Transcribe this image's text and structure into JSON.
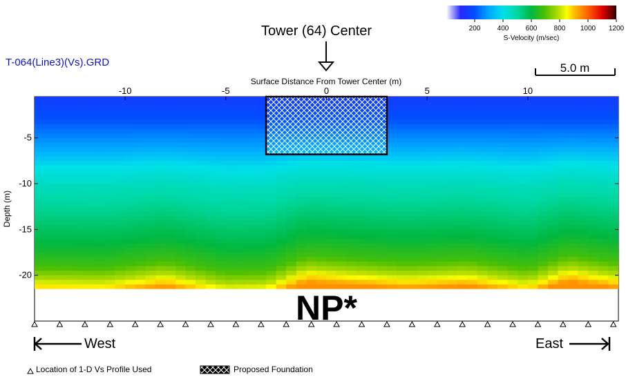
{
  "file_title": "T-064(Line3)(Vs).GRD",
  "tower_title": "Tower (64) Center",
  "np_label": "NP*",
  "west_label": "West",
  "east_label": "East",
  "scale_bar_label": "5.0 m",
  "legend": {
    "triangle_text": "Location of 1-D Vs Profile Used",
    "foundation_text": "Proposed Foundation"
  },
  "colorbar": {
    "title": "S-Velocity (m/sec)",
    "ticks": [
      200,
      400,
      600,
      800,
      1000,
      1200
    ],
    "range": [
      0,
      1200
    ]
  },
  "colors": {
    "title_blue": "#1010c8",
    "velocity_stops": [
      [
        0,
        "#ffffff"
      ],
      [
        100,
        "#2828ff"
      ],
      [
        200,
        "#0050ff"
      ],
      [
        300,
        "#00a8ff"
      ],
      [
        400,
        "#00e0e8"
      ],
      [
        500,
        "#00d8a0"
      ],
      [
        600,
        "#00b840"
      ],
      [
        700,
        "#50c000"
      ],
      [
        800,
        "#c0e000"
      ],
      [
        850,
        "#ffff00"
      ],
      [
        900,
        "#ffc000"
      ],
      [
        1000,
        "#ff6000"
      ],
      [
        1100,
        "#e00000"
      ],
      [
        1200,
        "#300000"
      ]
    ]
  },
  "chart_data": {
    "type": "heatmap",
    "xlabel": "Surface Distance From Tower Center (m)",
    "ylabel": "Depth (m)",
    "xlim": [
      -14.5,
      14.5
    ],
    "ylim": [
      -25,
      -0.5
    ],
    "section_x_range": [
      -14.5,
      14.5
    ],
    "section_depth_range": [
      -0.5,
      -21.5
    ],
    "x_ticks": [
      -10,
      -5,
      0,
      5,
      10
    ],
    "y_ticks": [
      -5,
      -10,
      -15,
      -20
    ],
    "tower_center_x": 0,
    "foundation": {
      "x_min": -3,
      "x_max": 3,
      "depth_top": -0.5,
      "depth_bottom": -6.8
    },
    "profile_locations_x": [
      -14.5,
      -13.25,
      -12,
      -10.75,
      -9.5,
      -8.25,
      -7,
      -5.75,
      -4.5,
      -3.25,
      -2,
      -0.75,
      0.5,
      1.75,
      3,
      4.25,
      5.5,
      6.75,
      8,
      9.25,
      10.5,
      11.75,
      13,
      14.25
    ],
    "velocity_depth_profile": [
      {
        "depth": -0.5,
        "vs": 150
      },
      {
        "depth": -3,
        "vs": 200
      },
      {
        "depth": -6,
        "vs": 300
      },
      {
        "depth": -8,
        "vs": 400
      },
      {
        "depth": -10,
        "vs": 460
      },
      {
        "depth": -13,
        "vs": 530
      },
      {
        "depth": -16,
        "vs": 600
      },
      {
        "depth": -18.5,
        "vs": 680
      },
      {
        "depth": -20,
        "vs": 790
      },
      {
        "depth": -21.5,
        "vs": 950
      }
    ],
    "lateral_variation": [
      {
        "x": -14.5,
        "shift_m": 0.5
      },
      {
        "x": -11,
        "shift_m": 0.6
      },
      {
        "x": -8,
        "shift_m": -0.2
      },
      {
        "x": -5,
        "shift_m": 1.0
      },
      {
        "x": -3,
        "shift_m": 0.9
      },
      {
        "x": -1,
        "shift_m": -0.7
      },
      {
        "x": 1,
        "shift_m": -0.4
      },
      {
        "x": 4,
        "shift_m": 0.0
      },
      {
        "x": 7,
        "shift_m": -0.3
      },
      {
        "x": 10,
        "shift_m": 0.6
      },
      {
        "x": 12,
        "shift_m": -0.8
      },
      {
        "x": 14.5,
        "shift_m": 0.0
      }
    ]
  }
}
